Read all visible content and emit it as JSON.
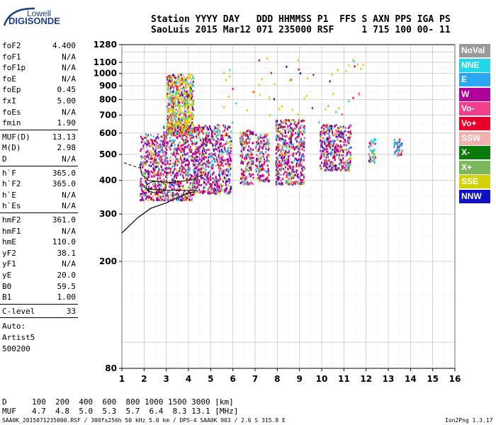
{
  "logo": {
    "top": "Lowell",
    "bottom": "DIGISONDE"
  },
  "header": {
    "line1": "Station YYYY DAY   DDD HHMMSS P1  FFS S AXN PPS IGA PS",
    "line2": "SaoLuis 2015 Mar12 071 235000 RSF     1 715 100 00- 11"
  },
  "params_group1": [
    {
      "label": "foF2",
      "value": "4.400"
    },
    {
      "label": "foF1",
      "value": "N/A"
    },
    {
      "label": "foF1p",
      "value": "N/A"
    },
    {
      "label": "foE",
      "value": "N/A"
    },
    {
      "label": "foEp",
      "value": "0.45"
    },
    {
      "label": "fxI",
      "value": "5.00"
    },
    {
      "label": "foEs",
      "value": "N/A"
    },
    {
      "label": "fmin",
      "value": "1.90"
    }
  ],
  "params_group2": [
    {
      "label": "MUF(D)",
      "value": "13.13"
    },
    {
      "label": "M(D)",
      "value": "2.98"
    },
    {
      "label": "D",
      "value": "N/A"
    }
  ],
  "params_group3": [
    {
      "label": "h`F",
      "value": "365.0"
    },
    {
      "label": "h`F2",
      "value": "365.0"
    },
    {
      "label": "h`E",
      "value": "N/A"
    },
    {
      "label": "h`Es",
      "value": "N/A"
    }
  ],
  "params_group4": [
    {
      "label": "hmF2",
      "value": "361.0"
    },
    {
      "label": "hmF1",
      "value": "N/A"
    },
    {
      "label": "hmE",
      "value": "110.0"
    },
    {
      "label": "yF2",
      "value": "38.1"
    },
    {
      "label": "yF1",
      "value": "N/A"
    },
    {
      "label": "yE",
      "value": "20.0"
    },
    {
      "label": "B0",
      "value": "59.5"
    },
    {
      "label": "B1",
      "value": "1.00"
    }
  ],
  "clevel": {
    "label": "C-level",
    "value": "33"
  },
  "autoscale": {
    "line1": "Auto:",
    "line2": "Artist5",
    "line3": "500200"
  },
  "legend": [
    {
      "label": "NoVal",
      "color": "#9a9a9a"
    },
    {
      "label": "NNE",
      "color": "#22d8e8"
    },
    {
      "label": "E",
      "color": "#2aa7f0"
    },
    {
      "label": "W",
      "color": "#b0009a"
    },
    {
      "label": "Vo-",
      "color": "#f0408c"
    },
    {
      "label": "Vo+",
      "color": "#e8002a"
    },
    {
      "label": "SSW",
      "color": "#f0b0b0"
    },
    {
      "label": "X-",
      "color": "#0a7a0a"
    },
    {
      "label": "X+",
      "color": "#7ab85a"
    },
    {
      "label": "SSE",
      "color": "#d2d200"
    },
    {
      "label": "NNW",
      "color": "#1010c8"
    }
  ],
  "chart_data": {
    "type": "scatter",
    "x_ticks": [
      "1",
      "2",
      "3",
      "4",
      "5",
      "6",
      "7",
      "8",
      "9",
      "10",
      "11",
      "12",
      "13",
      "14",
      "15",
      "16"
    ],
    "y_ticks": [
      "80",
      "200",
      "300",
      "400",
      "500",
      "600",
      "700",
      "800",
      "900",
      "1000",
      "1100",
      "1280"
    ],
    "xlim": [
      1,
      16
    ],
    "y_scale": "log",
    "ylim": [
      80,
      1280
    ],
    "grid": true,
    "clusters": [
      {
        "x_range": [
          1.8,
          2.8
        ],
        "y_range": [
          340,
          600
        ],
        "dominant": "#b0009a"
      },
      {
        "x_range": [
          2.8,
          4.2
        ],
        "y_range": [
          340,
          650
        ],
        "dominant": "#b0009a"
      },
      {
        "x_range": [
          3.0,
          4.2
        ],
        "y_range": [
          600,
          1000
        ],
        "dominant": "#d2d200"
      },
      {
        "x_range": [
          4.2,
          5.9
        ],
        "y_range": [
          360,
          650
        ],
        "dominant": "#b0009a"
      },
      {
        "x_range": [
          6.3,
          6.9
        ],
        "y_range": [
          390,
          620
        ],
        "dominant": "#b0009a"
      },
      {
        "x_range": [
          7.0,
          7.6
        ],
        "y_range": [
          400,
          600
        ],
        "dominant": "#b0009a"
      },
      {
        "x_range": [
          7.9,
          9.2
        ],
        "y_range": [
          390,
          680
        ],
        "dominant": "#b0009a"
      },
      {
        "x_range": [
          9.9,
          11.3
        ],
        "y_range": [
          440,
          650
        ],
        "dominant": "#b0009a"
      },
      {
        "x_range": [
          12.1,
          12.4
        ],
        "y_range": [
          470,
          580
        ],
        "dominant": "#22d8e8"
      },
      {
        "x_range": [
          13.2,
          13.6
        ],
        "y_range": [
          500,
          580
        ],
        "dominant": "#2aa7f0"
      }
    ]
  },
  "bottom": {
    "d_label": "D",
    "d_values": "100  200  400  600  800 1000 1500 3000 [km]",
    "muf_label": "MUF",
    "muf_values": "4.7  4.8  5.0  5.3  5.7  6.4  8.3 13.1 [MHz]",
    "footer": "SAA0K_2015071235000.RSF / 300fx256h 50 kHz 5.0 km / DPS-4 SAA0K 903 / 2.6 S 315.8 E",
    "version": "Ion2Png 1.3.17"
  }
}
